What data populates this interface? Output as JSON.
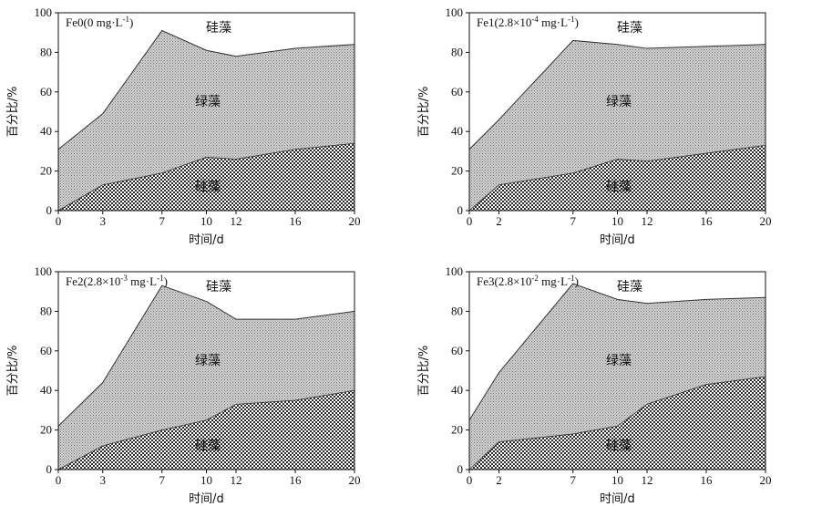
{
  "chart_data": [
    {
      "type": "area",
      "title_main": "Fe0",
      "title_detail": "(0 mg·L",
      "title_sup": "-1",
      "title_close": ")",
      "x": [
        0,
        3,
        7,
        10,
        12,
        16,
        20
      ],
      "xticks": [
        "0",
        "3",
        "7",
        "10",
        "12",
        "16",
        "20"
      ],
      "xlabel": "时间/d",
      "ylabel": "百分比/%",
      "ylim": [
        0,
        100
      ],
      "yticks": [
        "0",
        "20",
        "40",
        "60",
        "80",
        "100"
      ],
      "bottom_series_values": [
        0,
        13,
        19,
        27,
        26,
        31,
        34
      ],
      "top_series_upper_values": [
        31,
        49,
        91,
        81,
        78,
        82,
        84
      ],
      "labels": {
        "top": "硅藻",
        "middle": "绿藻",
        "bottom": "硅藻"
      }
    },
    {
      "type": "area",
      "title_main": "Fe1",
      "title_detail": "(2.8×10",
      "title_sup": "-4",
      "title_unit": " mg·L",
      "title_sup2": "-1",
      "title_close": ")",
      "x": [
        0,
        2,
        7,
        10,
        12,
        16,
        20
      ],
      "xticks": [
        "0",
        "2",
        "7",
        "10",
        "12",
        "16",
        "20"
      ],
      "xlabel": "时间/d",
      "ylabel": "百分比/%",
      "ylim": [
        0,
        100
      ],
      "yticks": [
        "0",
        "20",
        "40",
        "60",
        "80",
        "100"
      ],
      "bottom_series_values": [
        0,
        13,
        19,
        26,
        25,
        29,
        33
      ],
      "top_series_upper_values": [
        31,
        46,
        86,
        84,
        82,
        83,
        84
      ],
      "labels": {
        "top": "硅藻",
        "middle": "绿藻",
        "bottom": "硅藻"
      }
    },
    {
      "type": "area",
      "title_main": "Fe2",
      "title_detail": "(2.8×10",
      "title_sup": "-3",
      "title_unit": " mg·L",
      "title_sup2": "-1",
      "title_close": ")",
      "x": [
        0,
        3,
        7,
        10,
        12,
        16,
        20
      ],
      "xticks": [
        "0",
        "3",
        "7",
        "10",
        "12",
        "16",
        "20"
      ],
      "xlabel": "时间/d",
      "ylabel": "百分比/%",
      "ylim": [
        0,
        100
      ],
      "yticks": [
        "0",
        "20",
        "40",
        "60",
        "80",
        "100"
      ],
      "bottom_series_values": [
        0,
        12,
        20,
        25,
        33,
        35,
        40
      ],
      "top_series_upper_values": [
        22,
        44,
        93,
        85,
        76,
        76,
        80
      ],
      "labels": {
        "top": "硅藻",
        "middle": "绿藻",
        "bottom": "硅藻"
      }
    },
    {
      "type": "area",
      "title_main": "Fe3",
      "title_detail": "(2.8×10",
      "title_sup": "-2",
      "title_unit": " mg·L",
      "title_sup2": "-1",
      "title_close": ")",
      "x": [
        0,
        2,
        7,
        10,
        12,
        16,
        20
      ],
      "xticks": [
        "0",
        "2",
        "7",
        "10",
        "12",
        "16",
        "20"
      ],
      "xlabel": "时间/d",
      "ylabel": "百分比/%",
      "ylim": [
        0,
        100
      ],
      "yticks": [
        "0",
        "20",
        "40",
        "60",
        "80",
        "100"
      ],
      "bottom_series_values": [
        0,
        14,
        18,
        22,
        33,
        43,
        47
      ],
      "top_series_upper_values": [
        25,
        49,
        94,
        86,
        84,
        86,
        87
      ],
      "labels": {
        "top": "硅藻",
        "middle": "绿藻",
        "bottom": "硅藻"
      }
    }
  ]
}
